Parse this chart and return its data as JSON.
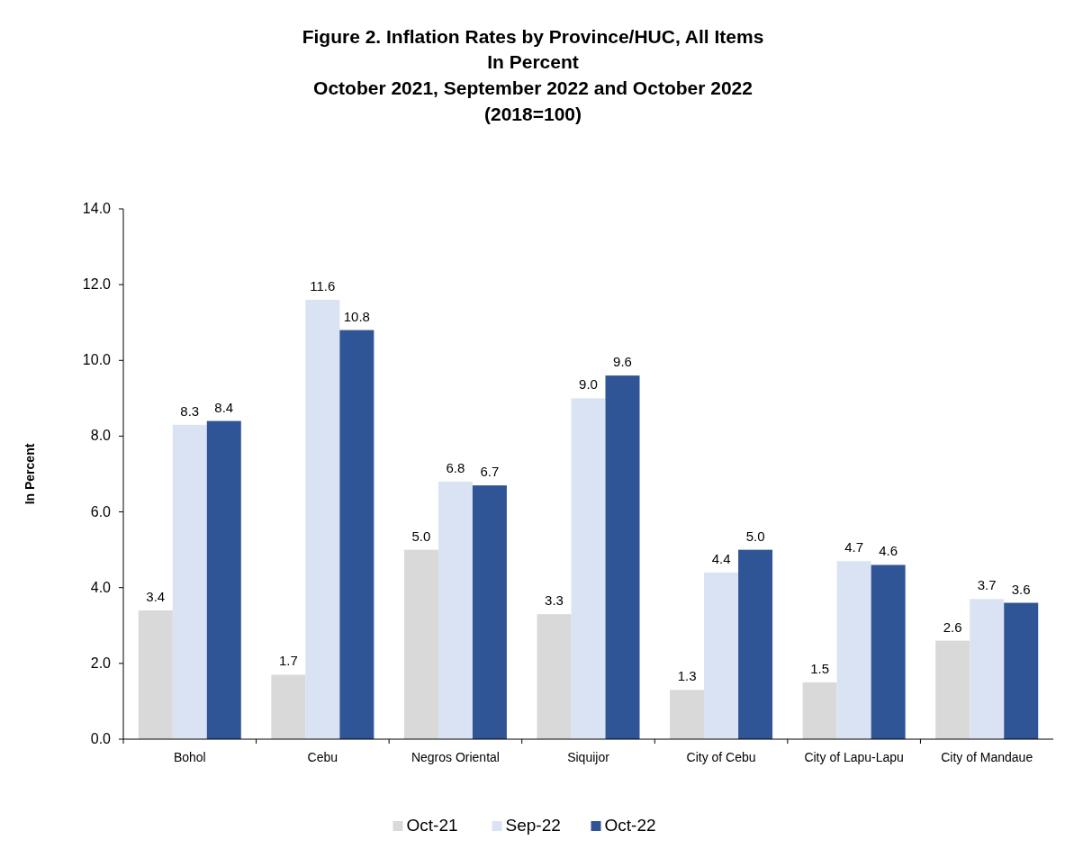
{
  "chart_data": {
    "type": "bar",
    "title": "Figure 2. Inflation Rates by Province/HUC, All Items",
    "subtitle": "In Percent\nOctober 2021, September 2022 and October 2022\n(2018=100)",
    "ylabel": "In Percent",
    "categories": [
      "Bohol",
      "Cebu",
      "Negros Oriental",
      "Siquijor",
      "City of Cebu",
      "City of Lapu-Lapu",
      "City of Mandaue"
    ],
    "series": [
      {
        "name": "Oct-21",
        "color": "#d9d9d9",
        "values": [
          3.4,
          1.7,
          5.0,
          3.3,
          1.3,
          1.5,
          2.6
        ],
        "value_labels": [
          "3.4",
          "1.7",
          "5.0",
          "3.3",
          "1.3",
          "1.5",
          "2.6"
        ]
      },
      {
        "name": "Sep-22",
        "color": "#dae3f3",
        "values": [
          8.3,
          11.6,
          6.8,
          9.0,
          4.4,
          4.7,
          3.7
        ],
        "value_labels": [
          "8.3",
          "11.6",
          "6.8",
          "9.0",
          "4.4",
          "4.7",
          "3.7"
        ]
      },
      {
        "name": "Oct-22",
        "color": "#2f5597",
        "values": [
          8.4,
          10.8,
          6.7,
          9.6,
          5.0,
          4.6,
          3.6
        ],
        "value_labels": [
          "8.4",
          "10.8",
          "6.7",
          "9.6",
          "5.0",
          "4.6",
          "3.6"
        ]
      }
    ],
    "ylim": [
      0,
      14
    ],
    "yticks": [
      {
        "value": 0,
        "label": "0.0"
      },
      {
        "value": 2,
        "label": "2.0"
      },
      {
        "value": 4,
        "label": "4.0"
      },
      {
        "value": 6,
        "label": "6.0"
      },
      {
        "value": 8,
        "label": "8.0"
      },
      {
        "value": 10,
        "label": "10.0"
      },
      {
        "value": 12,
        "label": "12.0"
      },
      {
        "value": 14,
        "label": "14.0"
      }
    ],
    "legend": "bottom"
  }
}
